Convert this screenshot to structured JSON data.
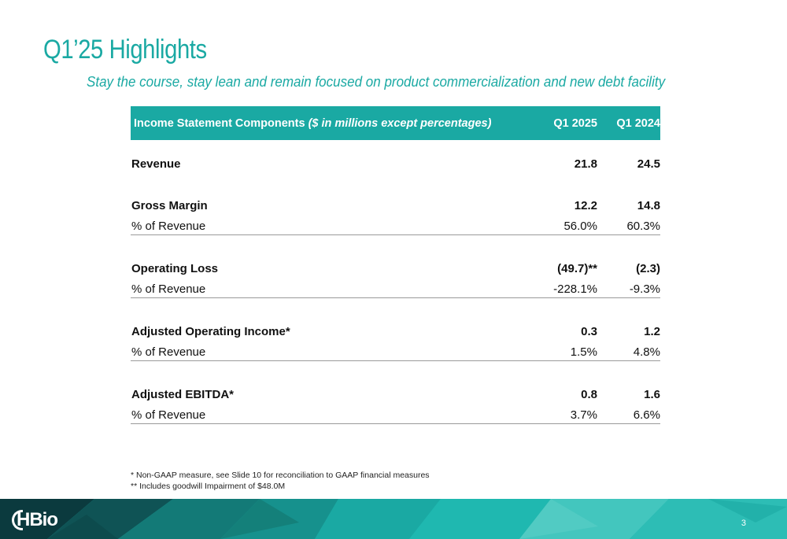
{
  "title": "Q1’25 Highlights",
  "subtitle": "Stay the course, stay lean and remain focused on product commercialization and new debt facility",
  "table": {
    "header_label": "Income Statement Components ",
    "header_label_italic": "($ in millions except percentages)",
    "col1": "Q1 2025",
    "col2": "Q1 2024",
    "rows": [
      {
        "label": "Revenue",
        "v1": "21.8",
        "v2": "24.5"
      },
      {
        "label": "Gross Margin",
        "v1": "12.2",
        "v2": "14.8"
      },
      {
        "label": "% of Revenue",
        "v1": "56.0%",
        "v2": "60.3%"
      },
      {
        "label": "Operating Loss",
        "v1": "(49.7)**",
        "v2": "(2.3)"
      },
      {
        "label": "% of Revenue",
        "v1": "-228.1%",
        "v2": "-9.3%"
      },
      {
        "label": "Adjusted Operating Income*",
        "v1": "0.3",
        "v2": "1.2"
      },
      {
        "label": "% of Revenue",
        "v1": "1.5%",
        "v2": "4.8%"
      },
      {
        "label": "Adjusted EBITDA*",
        "v1": "0.8",
        "v2": "1.6"
      },
      {
        "label": "% of Revenue",
        "v1": "3.7%",
        "v2": "6.6%"
      }
    ]
  },
  "footnotes": [
    "* Non-GAAP measure, see Slide 10 for reconciliation to GAAP financial measures",
    "** Includes goodwill Impairment of $48.0M"
  ],
  "footer": {
    "logo_text": "HBio",
    "page_number": "3",
    "colors": {
      "teal": "#1aa9a3",
      "dark": "#0b3a3e",
      "light": "#43c6be"
    }
  }
}
